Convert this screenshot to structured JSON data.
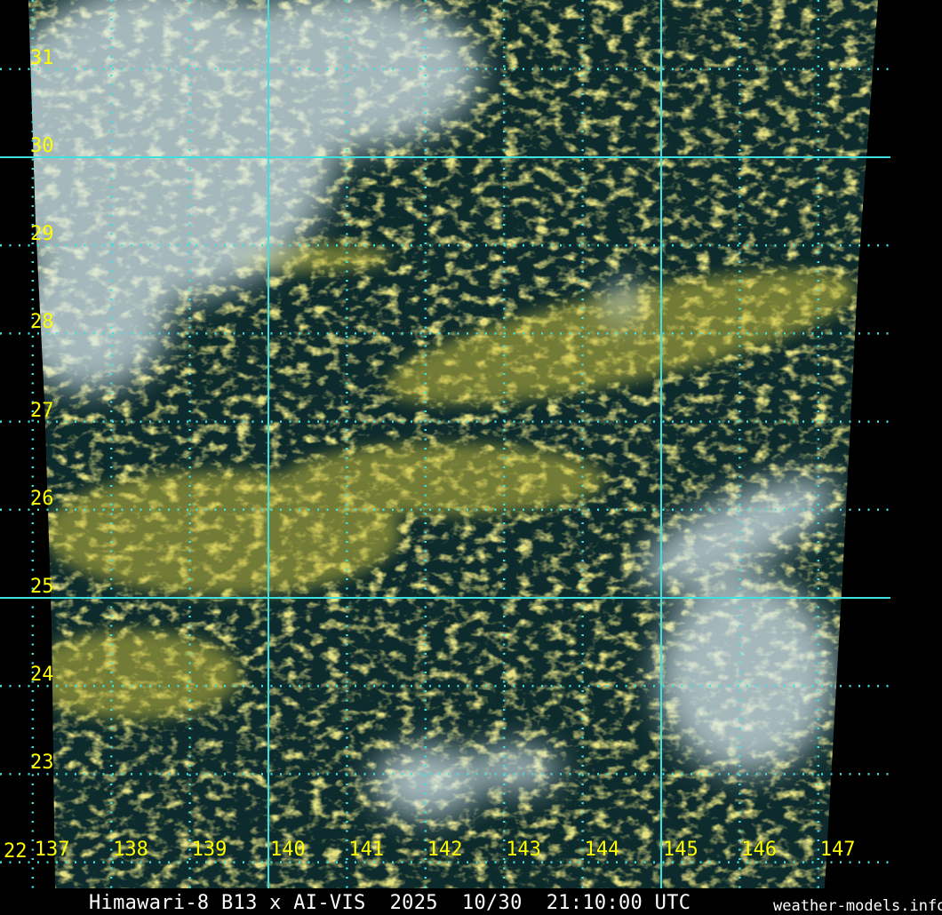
{
  "image": {
    "caption": "Himawari-8 B13 x AI-VIS  2025  10/30  21:10:00 UTC",
    "credit": "weather-models.info"
  },
  "grid": {
    "latitudes": [
      31,
      30,
      29,
      28,
      27,
      26,
      25,
      24,
      23,
      22
    ],
    "longitudes": [
      137,
      138,
      139,
      140,
      141,
      142,
      143,
      144,
      145,
      146,
      147
    ],
    "major_latitudes": [
      30,
      25
    ],
    "major_longitudes": [
      140,
      145
    ],
    "line_color": "#40e0e0",
    "label_color": "#ffff00"
  },
  "colors": {
    "ocean": "#0d2a2c",
    "low_cloud": "#c8c040",
    "high_cloud": "#d8e8ec",
    "background": "#000000"
  }
}
